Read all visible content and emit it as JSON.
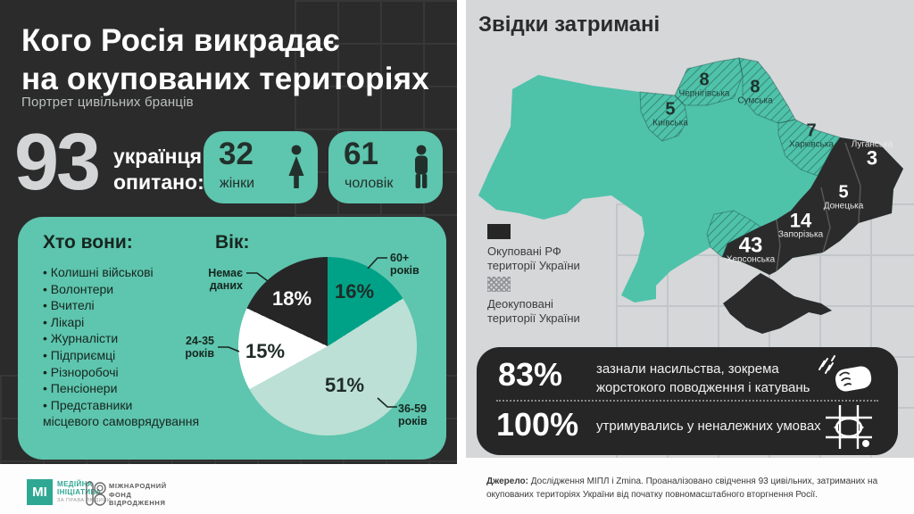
{
  "header": {
    "title_line1": "Кого Росія викрадає",
    "title_line2": "на окупованих територіях",
    "subtitle": "Портрет цивільних бранців"
  },
  "survey": {
    "total": "93",
    "total_label_line1": "українця",
    "total_label_line2": "опитано:",
    "women_count": "32",
    "women_label": "жінки",
    "men_count": "61",
    "men_label": "чоловік"
  },
  "who": {
    "title": "Хто вони:",
    "items": [
      "Колишні військові",
      "Волонтери",
      "Вчителі",
      "Лікарі",
      "Журналісти",
      "Підприємці",
      "Різноробочі",
      "Пенсіонери",
      "Представники"
    ],
    "items_cont": "місцевого самоврядування"
  },
  "chart_data": [
    {
      "type": "pie",
      "title": "Вік:",
      "slices": [
        {
          "label": "60+ років",
          "value": 16,
          "pct": "16%",
          "color": "#00a287"
        },
        {
          "label": "36-59 років",
          "value": 51,
          "pct": "51%",
          "color": "#bce0d5"
        },
        {
          "label": "24-35 років",
          "value": 15,
          "pct": "15%",
          "color": "#ffffff"
        },
        {
          "label": "Немає даних",
          "value": 18,
          "pct": "18%",
          "color": "#262626"
        }
      ],
      "start_angle_deg": 0,
      "direction": "clockwise",
      "legend_position": "callouts"
    },
    {
      "type": "table",
      "title": "Звідки затримані",
      "categories": [
        "Київська",
        "Чернігівська",
        "Сумська",
        "Харківська",
        "Луганська",
        "Донецька",
        "Запорізька",
        "Херсонська"
      ],
      "values": [
        5,
        8,
        8,
        7,
        3,
        5,
        14,
        43
      ]
    }
  ],
  "map": {
    "title": "Звідки затримані",
    "legend": [
      {
        "line1": "Окуповані РФ",
        "line2": "території України",
        "style": "solid-dark"
      },
      {
        "line1": "Деокуповані",
        "line2": "території України",
        "style": "hatched"
      }
    ],
    "regions": [
      {
        "name": "Київська",
        "value": "5",
        "status": "deoccupied"
      },
      {
        "name": "Чернігівська",
        "value": "8",
        "status": "deoccupied"
      },
      {
        "name": "Сумська",
        "value": "8",
        "status": "deoccupied"
      },
      {
        "name": "Харківська",
        "value": "7",
        "status": "deoccupied"
      },
      {
        "name": "Луганська",
        "value": "3",
        "status": "occupied"
      },
      {
        "name": "Донецька",
        "value": "5",
        "status": "occupied"
      },
      {
        "name": "Запорізька",
        "value": "14",
        "status": "occupied"
      },
      {
        "name": "Херсонська",
        "value": "43",
        "status": "occupied"
      }
    ]
  },
  "impact": {
    "stats": [
      {
        "pct": "83%",
        "line1": "зазнали насильства, зокрема",
        "line2": "жорстокого поводження і катувань",
        "icon": "fist"
      },
      {
        "pct": "100%",
        "line1": "утримувались у неналежних умовах",
        "line2": "",
        "icon": "eye-behind-bars"
      }
    ]
  },
  "footer": {
    "logo_mi": {
      "monogram": "МІ",
      "name_line1": "МЕДІЙНА",
      "name_line2": "ІНІЦІАТИВА",
      "tagline": "ЗА ПРАВА ЛЮДИНИ"
    },
    "logo_irf": {
      "name_line1": "МІЖНАРОДНИЙ",
      "name_line2": "ФОНД",
      "name_line3": "ВІДРОДЖЕННЯ"
    },
    "source_label": "Джерело:",
    "source_text": " Дослідження МІПЛ і Zmina. Проаналізовано свідчення 93 цивільних, затриманих на окупованих територіях України від початку повномасштабного вторгнення Росії."
  },
  "colors": {
    "accent_teal": "#5ec5ae",
    "map_teal": "#4fc2aa",
    "occupied_dark": "#2b2b2b",
    "panel_dark": "#2b2b2b",
    "panel_light": "#d5d7d9",
    "pie_dark_teal": "#00a287",
    "pie_light_mint": "#bce0d5"
  }
}
